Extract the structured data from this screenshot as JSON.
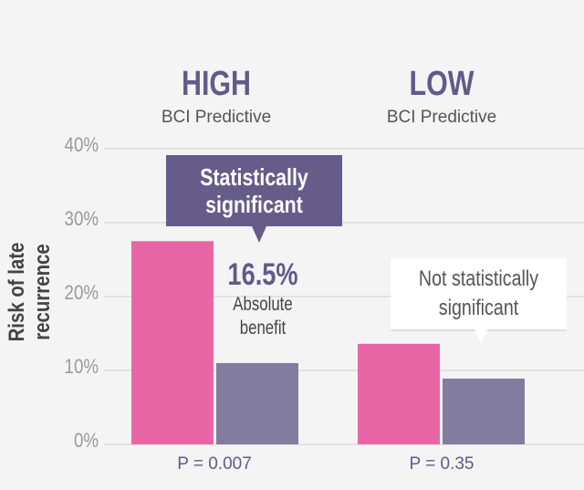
{
  "chart_data": {
    "type": "bar",
    "ylabel": "Risk of late recurrence",
    "ylim": [
      0,
      40
    ],
    "yticks": [
      "0%",
      "10%",
      "20%",
      "30%",
      "40%"
    ],
    "grid": true,
    "categories": [
      {
        "title": "HIGH",
        "subtitle": "BCI Predictive",
        "p_value": "P = 0.007"
      },
      {
        "title": "LOW",
        "subtitle": "BCI Predictive",
        "p_value": "P = 0.35"
      }
    ],
    "series": [
      {
        "name": "series-1",
        "color": "#e866a6",
        "values": [
          27.5,
          13.6
        ]
      },
      {
        "name": "series-2",
        "color": "#827c9e",
        "values": [
          11.0,
          8.9
        ]
      }
    ],
    "annotations": {
      "high_callout": [
        "Statistically",
        "significant"
      ],
      "benefit_value": "16.5%",
      "benefit_label": [
        "Absolute",
        "benefit"
      ],
      "low_callout": [
        "Not statistically",
        "significant"
      ]
    }
  }
}
